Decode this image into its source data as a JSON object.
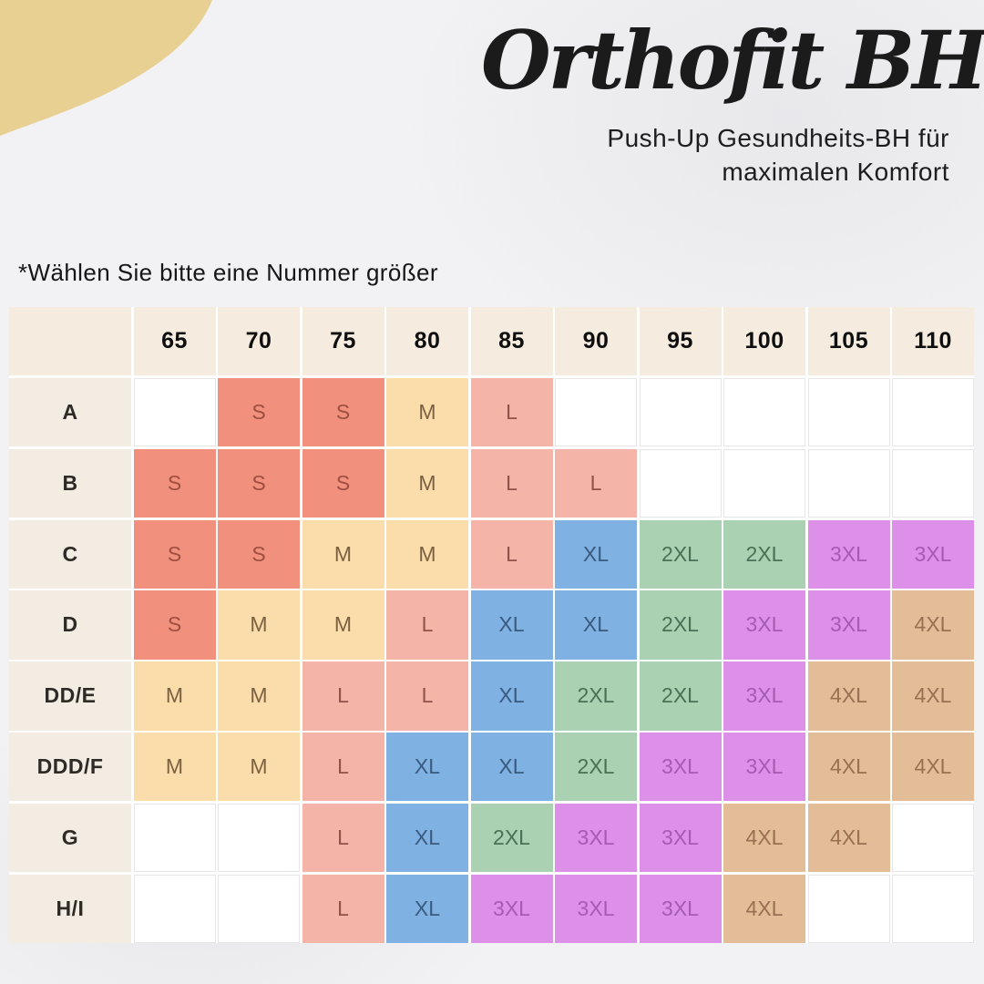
{
  "header": {
    "title": "Orthofit BH",
    "subtitle_line1": "Push-Up Gesundheits-BH für",
    "subtitle_line2": "maximalen Komfort"
  },
  "note": "*Wählen Sie bitte eine Nummer größer",
  "chart_data": {
    "type": "table",
    "title": "Orthofit BH size chart",
    "columns": [
      "65",
      "70",
      "75",
      "80",
      "85",
      "90",
      "95",
      "100",
      "105",
      "110"
    ],
    "rows": [
      {
        "label": "A",
        "cells": [
          "",
          "S",
          "S",
          "M",
          "L",
          "",
          "",
          "",
          "",
          ""
        ]
      },
      {
        "label": "B",
        "cells": [
          "S",
          "S",
          "S",
          "M",
          "L",
          "L",
          "",
          "",
          "",
          ""
        ]
      },
      {
        "label": "C",
        "cells": [
          "S",
          "S",
          "M",
          "M",
          "L",
          "XL",
          "2XL",
          "2XL",
          "3XL",
          "3XL"
        ]
      },
      {
        "label": "D",
        "cells": [
          "S",
          "M",
          "M",
          "L",
          "XL",
          "XL",
          "2XL",
          "3XL",
          "3XL",
          "4XL"
        ]
      },
      {
        "label": "DD/E",
        "cells": [
          "M",
          "M",
          "L",
          "L",
          "XL",
          "2XL",
          "2XL",
          "3XL",
          "4XL",
          "4XL"
        ]
      },
      {
        "label": "DDD/F",
        "cells": [
          "M",
          "M",
          "L",
          "XL",
          "XL",
          "2XL",
          "3XL",
          "3XL",
          "4XL",
          "4XL"
        ]
      },
      {
        "label": "G",
        "cells": [
          "",
          "",
          "L",
          "XL",
          "2XL",
          "3XL",
          "3XL",
          "4XL",
          "4XL",
          ""
        ]
      },
      {
        "label": "H/I",
        "cells": [
          "",
          "",
          "L",
          "XL",
          "3XL",
          "3XL",
          "3XL",
          "4XL",
          "",
          ""
        ]
      }
    ],
    "size_colors": {
      "S": {
        "bg": "#f1907c",
        "text": "#9e4f41"
      },
      "M": {
        "bg": "#fbdcab",
        "text": "#7a6142"
      },
      "L": {
        "bg": "#f4b5a8",
        "text": "#8f5349"
      },
      "XL": {
        "bg": "#7fb1e3",
        "text": "#3a5a7e"
      },
      "2XL": {
        "bg": "#abd1b3",
        "text": "#4a7055"
      },
      "3XL": {
        "bg": "#dd90e7",
        "text": "#a45cb0"
      },
      "4XL": {
        "bg": "#e3bd97",
        "text": "#9b7052"
      }
    },
    "header_bg": "#f5ecdf",
    "label_bg": "#f2ece2",
    "empty_bg": "#ffffff"
  },
  "decor": {
    "corner_blob_color": "#e7d091",
    "background_color": "#f2f2f4"
  }
}
